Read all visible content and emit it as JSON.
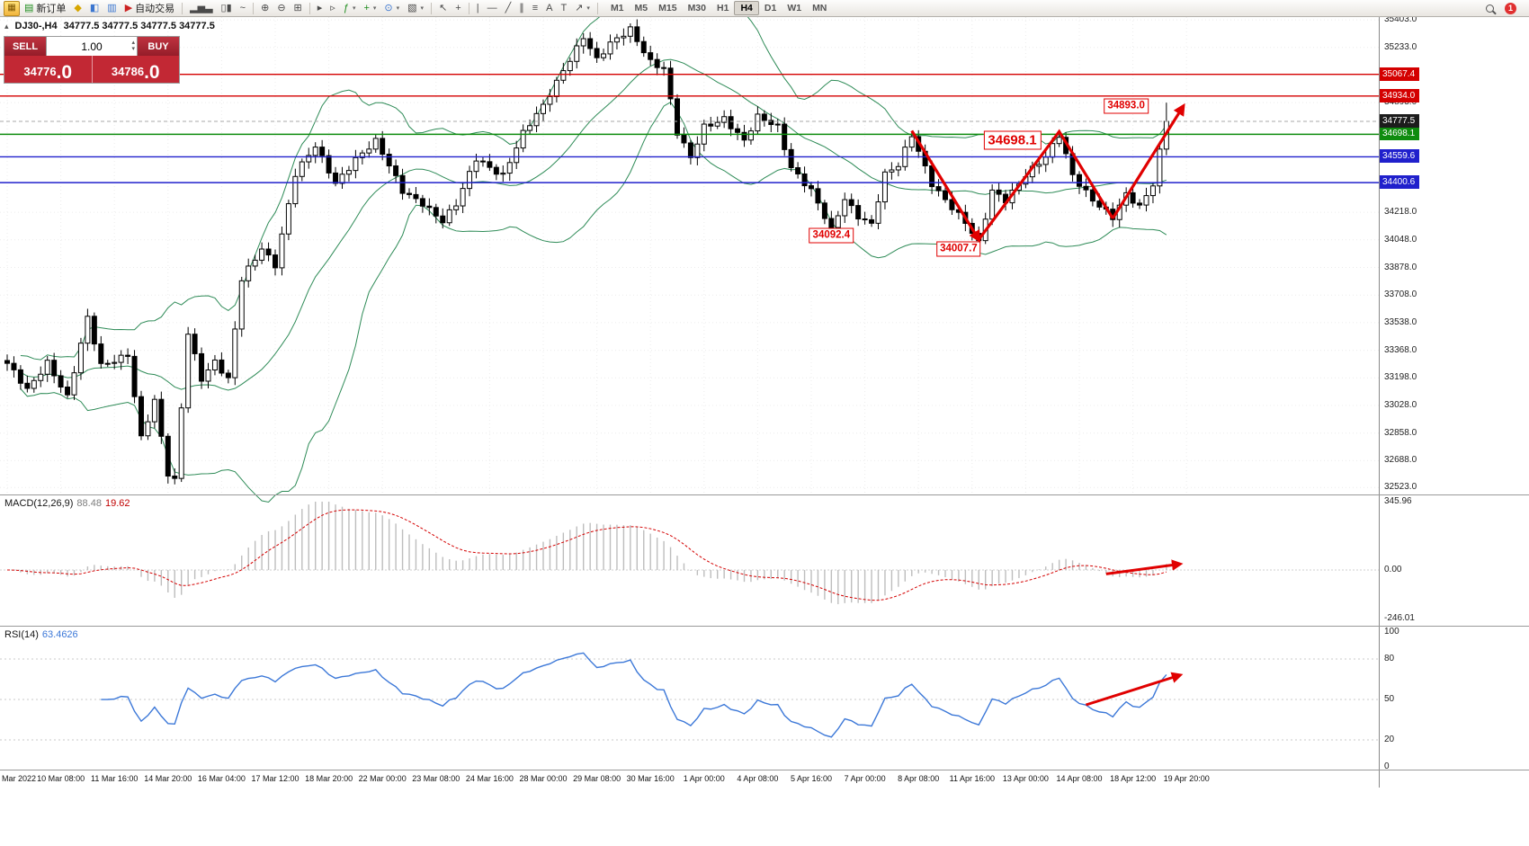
{
  "ui": {
    "collapse_glyph": "▴",
    "caret_glyph": "▾",
    "spin_up": "▴",
    "spin_down": "▾"
  },
  "toolbar": {
    "items": [
      {
        "type": "logo",
        "name": "app-icon",
        "glyph": "▦"
      },
      {
        "type": "button",
        "name": "new-order-button",
        "glyph": "▤",
        "glyph_color": "#1c8c1c",
        "label": "新订单"
      },
      {
        "type": "icon",
        "name": "new-chart-icon",
        "glyph": "◆",
        "glyph_color": "#d7a600"
      },
      {
        "type": "icon",
        "name": "profiles-icon",
        "glyph": "◧",
        "glyph_color": "#3b76d0"
      },
      {
        "type": "icon",
        "name": "data-window-icon",
        "glyph": "▥",
        "glyph_color": "#3b76d0"
      },
      {
        "type": "button",
        "name": "autotrading-button",
        "glyph": "▶",
        "glyph_color": "#cc2222",
        "label": "自动交易"
      },
      {
        "type": "sep"
      },
      {
        "type": "icon",
        "name": "chart-bars-icon",
        "glyph": "▂▅▃"
      },
      {
        "type": "icon",
        "name": "chart-candles-icon",
        "glyph": "▯▮"
      },
      {
        "type": "icon",
        "name": "chart-line-icon",
        "glyph": "~"
      },
      {
        "type": "sep"
      },
      {
        "type": "icon",
        "name": "zoom-in-icon",
        "glyph": "⊕"
      },
      {
        "type": "icon",
        "name": "zoom-out-icon",
        "glyph": "⊖"
      },
      {
        "type": "icon",
        "name": "tile-windows-icon",
        "glyph": "⊞"
      },
      {
        "type": "sep"
      },
      {
        "type": "icon",
        "name": "auto-scroll-icon",
        "glyph": "▸"
      },
      {
        "type": "icon",
        "name": "chart-shift-icon",
        "glyph": "▹"
      },
      {
        "type": "icon",
        "name": "indicators-icon",
        "glyph": "ƒ",
        "glyph_color": "#1c8c1c",
        "caret": true
      },
      {
        "type": "icon",
        "name": "add-indicator-icon",
        "glyph": "+",
        "glyph_color": "#1c8c1c",
        "caret": true
      },
      {
        "type": "icon",
        "name": "periods-icon",
        "glyph": "⊙",
        "glyph_color": "#3b76d0",
        "caret": true
      },
      {
        "type": "icon",
        "name": "templates-icon",
        "glyph": "▧",
        "caret": true
      },
      {
        "type": "sep"
      },
      {
        "type": "icon",
        "name": "cursor-icon",
        "glyph": "↖"
      },
      {
        "type": "icon",
        "name": "crosshair-icon",
        "glyph": "+"
      },
      {
        "type": "sep"
      },
      {
        "type": "icon",
        "name": "vertical-line-icon",
        "glyph": "|"
      },
      {
        "type": "icon",
        "name": "horizontal-line-icon",
        "glyph": "—"
      },
      {
        "type": "icon",
        "name": "trendline-icon",
        "glyph": "╱"
      },
      {
        "type": "icon",
        "name": "channel-icon",
        "glyph": "∥"
      },
      {
        "type": "icon",
        "name": "fibonacci-icon",
        "glyph": "≡"
      },
      {
        "type": "icon",
        "name": "text-icon",
        "glyph": "A"
      },
      {
        "type": "icon",
        "name": "text-label-icon",
        "glyph": "T"
      },
      {
        "type": "icon",
        "name": "arrows-icon",
        "glyph": "↗",
        "caret": true
      },
      {
        "type": "sep"
      }
    ],
    "timeframes": {
      "options": [
        "M1",
        "M5",
        "M15",
        "M30",
        "H1",
        "H4",
        "D1",
        "W1",
        "MN"
      ],
      "active": "H4"
    },
    "notification_badge": "1"
  },
  "symbol_bar": {
    "symbol": "DJ30-,H4",
    "ohlc": "34777.5 34777.5 34777.5 34777.5"
  },
  "trade_panel": {
    "sell_label": "SELL",
    "buy_label": "BUY",
    "volume": "1.00",
    "sell_price_main": "34776",
    "sell_price_frac": ".0",
    "buy_price_main": "34786",
    "buy_price_frac": ".0"
  },
  "indicators": {
    "macd": {
      "title": "MACD(12,26,9)",
      "main_value": "88.48",
      "signal_value": "19.62",
      "axis_ticks": [
        "345.96",
        "0.00",
        "-246.01"
      ],
      "fast": 12,
      "slow": 26,
      "signal": 9
    },
    "rsi": {
      "title": "RSI(14)",
      "value": "63.4626",
      "axis_ticks": [
        "100",
        "80",
        "50",
        "20",
        "0"
      ],
      "levels": [
        80,
        50,
        20
      ],
      "period": 14
    }
  },
  "colors": {
    "annotation_red": "#e00000",
    "macd_histogram": "#bdbdbd",
    "macd_signal": "#d40000",
    "rsi_line": "#3c78d8",
    "grid": "#ececec",
    "current_price_line": "#aaaaaa"
  },
  "chart_data": {
    "type": "candlestick",
    "symbol": "DJ30-",
    "timeframe": "H4",
    "price_range": [
      32480,
      35420
    ],
    "macd_range": [
      -246.01,
      345.96
    ],
    "rsi_range": [
      0,
      100
    ],
    "price_axis_ticks": [
      "35403.0",
      "35233.0",
      "34893.0",
      "34218.0",
      "34048.0",
      "33878.0",
      "33708.0",
      "33538.0",
      "33368.0",
      "33198.0",
      "33028.0",
      "32858.0",
      "32688.0",
      "32523.0"
    ],
    "levels": [
      {
        "price": 35067.4,
        "label": "35067.4",
        "color": "#d40000"
      },
      {
        "price": 34934.0,
        "label": "34934.0",
        "color": "#d40000"
      },
      {
        "price": 34698.1,
        "label": "34698.1",
        "color": "#0e8c0e"
      },
      {
        "price": 34559.6,
        "label": "34559.6",
        "color": "#2020cc"
      },
      {
        "price": 34400.6,
        "label": "34400.6",
        "color": "#2020cc"
      }
    ],
    "current_price": {
      "price": 34777.5,
      "label": "34777.5",
      "color": "#1c1c1c"
    },
    "bollinger": {
      "period": 20,
      "deviation": 2,
      "color": "#2e8b57"
    },
    "num_candles": 174,
    "label_interval": 8,
    "time_labels": [
      "Mar 2022",
      "10 Mar 08:00",
      "11 Mar 16:00",
      "14 Mar 20:00",
      "16 Mar 04:00",
      "17 Mar 12:00",
      "18 Mar 20:00",
      "22 Mar 00:00",
      "23 Mar 08:00",
      "24 Mar 16:00",
      "28 Mar 00:00",
      "29 Mar 08:00",
      "30 Mar 16:00",
      "1 Apr 00:00",
      "4 Apr 08:00",
      "5 Apr 16:00",
      "7 Apr 00:00",
      "8 Apr 08:00",
      "11 Apr 16:00",
      "13 Apr 00:00",
      "14 Apr 08:00",
      "18 Apr 12:00",
      "19 Apr 20:00"
    ],
    "price_path": [
      [
        0,
        33280
      ],
      [
        3,
        33120
      ],
      [
        6,
        33300
      ],
      [
        9,
        33080
      ],
      [
        12,
        33560
      ],
      [
        14,
        33270
      ],
      [
        18,
        33350
      ],
      [
        20,
        32830
      ],
      [
        22,
        33050
      ],
      [
        24,
        32600
      ],
      [
        25,
        32560
      ],
      [
        27,
        33480
      ],
      [
        29,
        33200
      ],
      [
        31,
        33300
      ],
      [
        33,
        33180
      ],
      [
        35,
        33800
      ],
      [
        38,
        34000
      ],
      [
        40,
        33900
      ],
      [
        43,
        34450
      ],
      [
        46,
        34620
      ],
      [
        49,
        34400
      ],
      [
        52,
        34550
      ],
      [
        55,
        34650
      ],
      [
        59,
        34350
      ],
      [
        62,
        34280
      ],
      [
        65,
        34160
      ],
      [
        67,
        34260
      ],
      [
        70,
        34550
      ],
      [
        74,
        34450
      ],
      [
        77,
        34700
      ],
      [
        80,
        34870
      ],
      [
        83,
        35100
      ],
      [
        86,
        35300
      ],
      [
        88,
        35150
      ],
      [
        90,
        35250
      ],
      [
        93,
        35350
      ],
      [
        96,
        35150
      ],
      [
        98,
        35100
      ],
      [
        100,
        34700
      ],
      [
        102,
        34550
      ],
      [
        104,
        34750
      ],
      [
        107,
        34800
      ],
      [
        110,
        34650
      ],
      [
        112,
        34800
      ],
      [
        115,
        34750
      ],
      [
        117,
        34500
      ],
      [
        120,
        34350
      ],
      [
        123,
        34100
      ],
      [
        125,
        34300
      ],
      [
        127,
        34200
      ],
      [
        129,
        34150
      ],
      [
        131,
        34450
      ],
      [
        133,
        34500
      ],
      [
        135,
        34690
      ],
      [
        138,
        34400
      ],
      [
        141,
        34250
      ],
      [
        143,
        34150
      ],
      [
        145,
        34020
      ],
      [
        147,
        34350
      ],
      [
        149,
        34300
      ],
      [
        152,
        34450
      ],
      [
        155,
        34550
      ],
      [
        157,
        34690
      ],
      [
        159,
        34450
      ],
      [
        162,
        34300
      ],
      [
        165,
        34180
      ],
      [
        167,
        34320
      ],
      [
        169,
        34250
      ],
      [
        171,
        34400
      ],
      [
        172,
        34600
      ],
      [
        173,
        34777.5
      ]
    ],
    "annotations": [
      {
        "text": "34893.0",
        "index": 167,
        "price": 34870,
        "size": "normal"
      },
      {
        "text": "34698.1",
        "index": 150,
        "price": 34660,
        "size": "large"
      },
      {
        "text": "34092.4",
        "index": 123,
        "price": 34075,
        "size": "normal"
      },
      {
        "text": "34007.7",
        "index": 142,
        "price": 33993,
        "size": "normal"
      }
    ],
    "zigzag_arrow": [
      [
        135,
        34720
      ],
      [
        145,
        34050
      ],
      [
        157,
        34715
      ],
      [
        165,
        34180
      ],
      [
        175.5,
        34870
      ]
    ],
    "macd_arrow": [
      [
        164,
        -20
      ],
      [
        175,
        30
      ]
    ],
    "rsi_arrow": [
      [
        161,
        46
      ],
      [
        175,
        68
      ]
    ]
  }
}
